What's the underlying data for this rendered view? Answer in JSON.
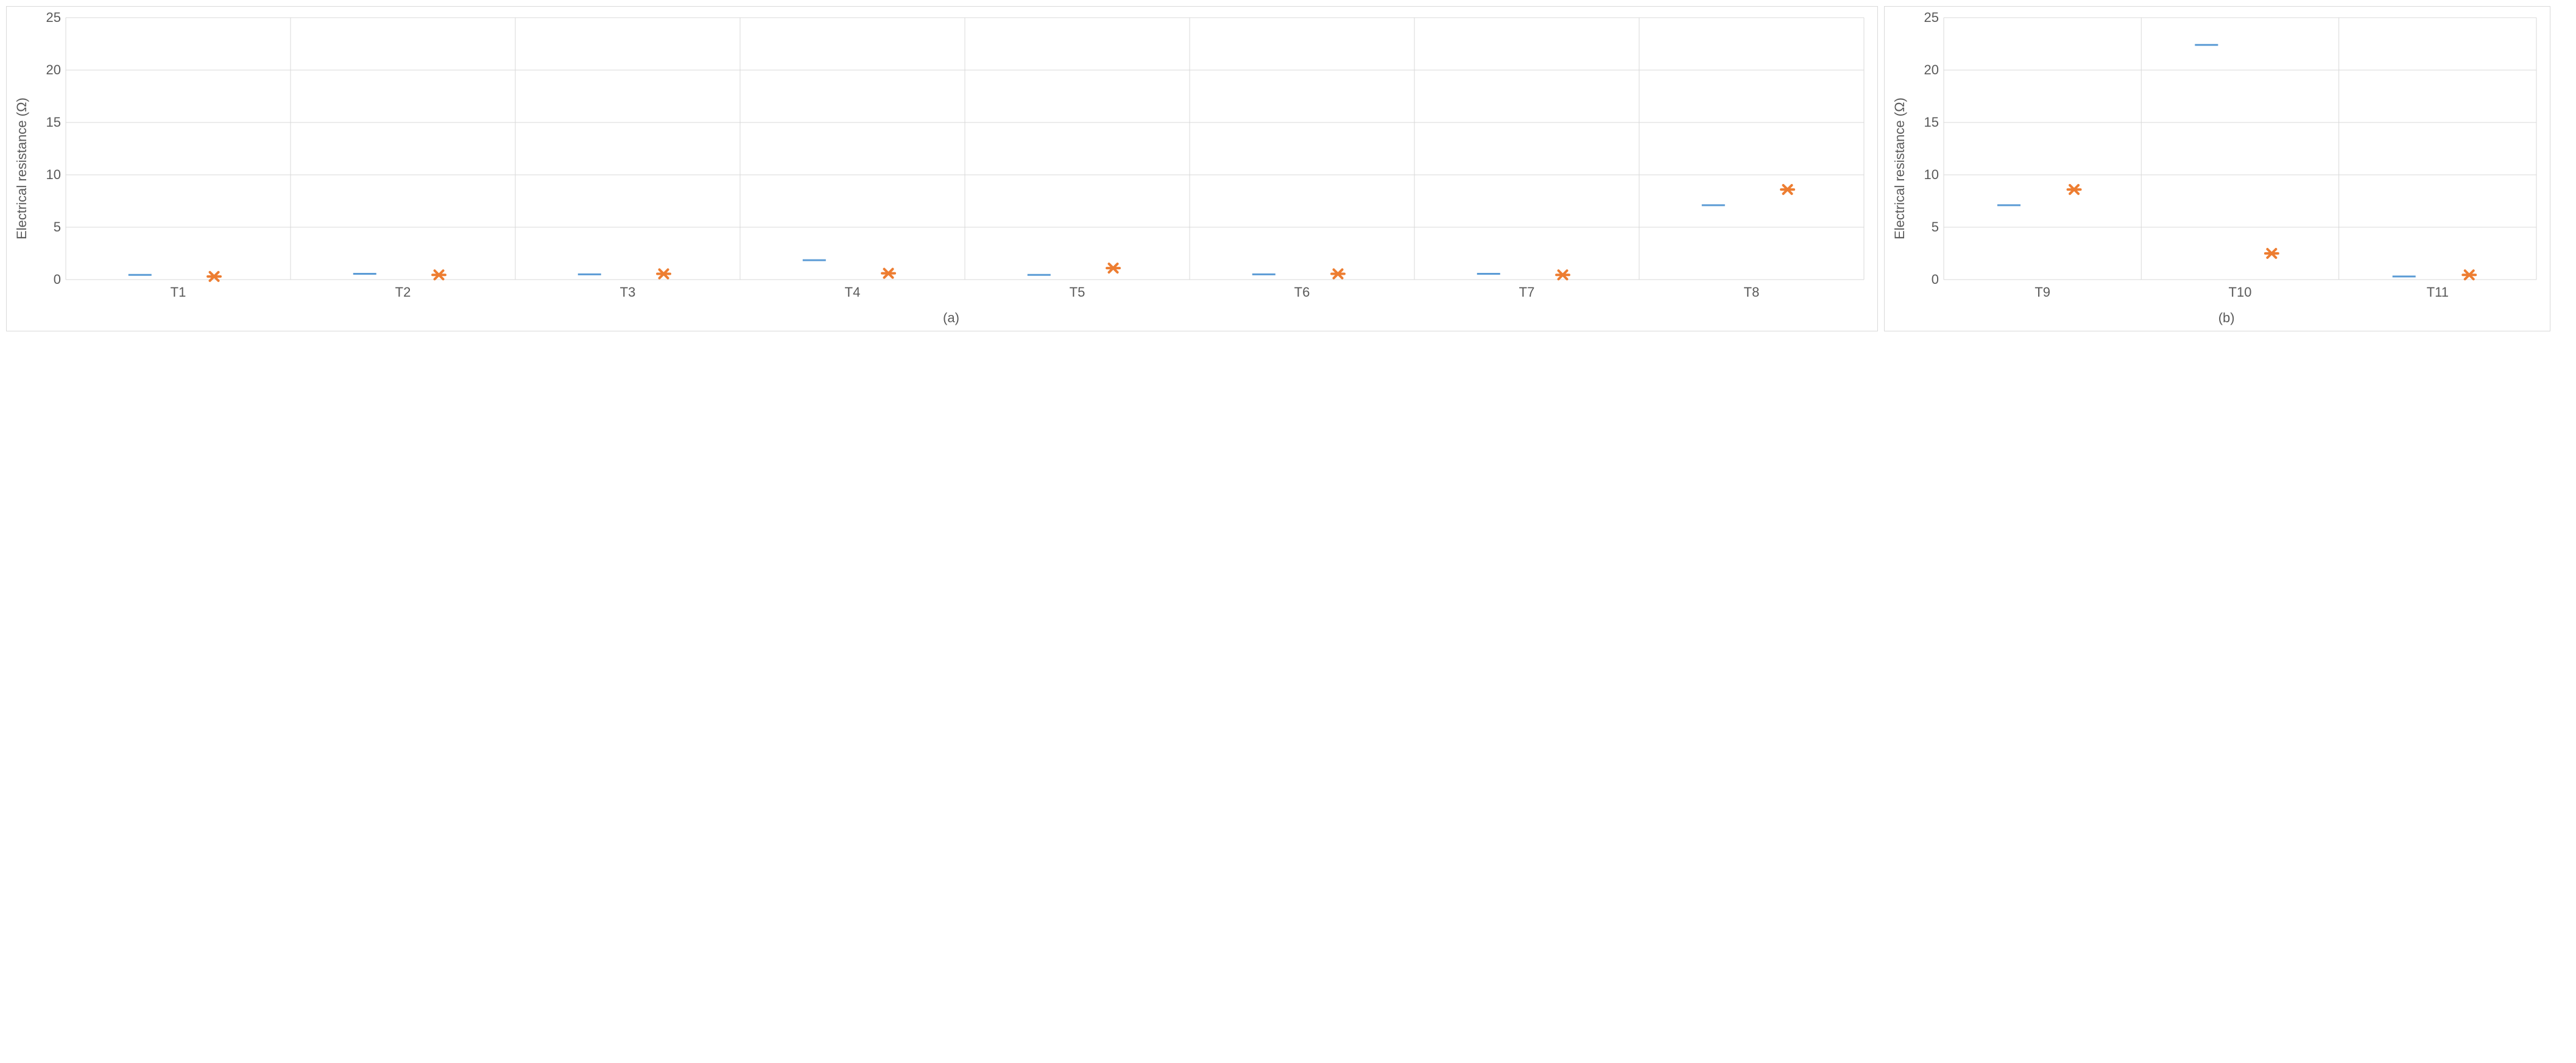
{
  "global": {
    "ylabel": "Electrical resistance (Ω)",
    "ylabel_fontsize": 22,
    "tick_fontsize": 22,
    "sublabel_fontsize": 22,
    "series1_color": "#5b9bd5",
    "series2_color": "#ed7d31",
    "background_color": "#ffffff",
    "grid_color": "#d9d9d9",
    "border_color": "#d9d9d9",
    "text_color": "#595959",
    "ylim": [
      0,
      25
    ],
    "ytick_step": 5,
    "dash_width": 38,
    "dash_stroke": 3,
    "x_marker_size": 14,
    "x_marker_stroke": 4
  },
  "chart_a": {
    "type": "marker",
    "sublabel": "(a)",
    "categories": [
      "T1",
      "T2",
      "T3",
      "T4",
      "T5",
      "T6",
      "T7",
      "T8"
    ],
    "series1_values": [
      0.45,
      0.55,
      0.5,
      1.85,
      0.45,
      0.5,
      0.55,
      7.1
    ],
    "series2_values": [
      0.3,
      0.45,
      0.55,
      0.6,
      1.1,
      0.55,
      0.45,
      8.6
    ]
  },
  "chart_b": {
    "type": "marker",
    "sublabel": "(b)",
    "categories": [
      "T9",
      "T10",
      "T11"
    ],
    "series1_values": [
      7.1,
      22.4,
      0.3
    ],
    "series2_values": [
      8.6,
      2.5,
      0.45
    ]
  }
}
